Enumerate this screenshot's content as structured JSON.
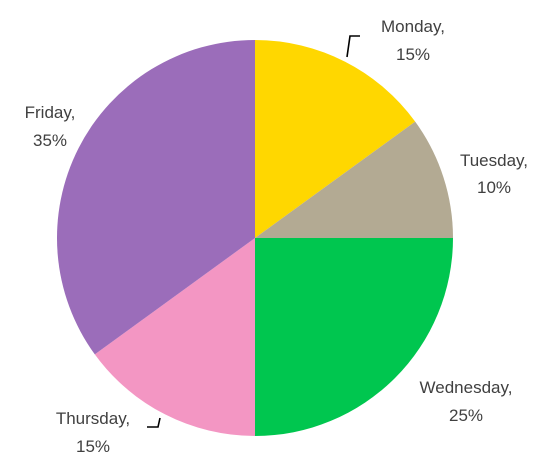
{
  "chart_data": {
    "type": "pie",
    "title": "",
    "start_angle_deg": 0,
    "direction": "clockwise",
    "slices": [
      {
        "label": "Monday",
        "value": 15,
        "value_label": "15%",
        "color": "#FFD700"
      },
      {
        "label": "Tuesday",
        "value": 10,
        "value_label": "10%",
        "color": "#B3AA93"
      },
      {
        "label": "Wednesday",
        "value": 25,
        "value_label": "25%",
        "color": "#00C64F"
      },
      {
        "label": "Thursday",
        "value": 15,
        "value_label": "15%",
        "color": "#F396C3"
      },
      {
        "label": "Friday",
        "value": 35,
        "value_label": "35%",
        "color": "#9B6DBA"
      }
    ],
    "legend": "none",
    "data_labels": "outside"
  }
}
